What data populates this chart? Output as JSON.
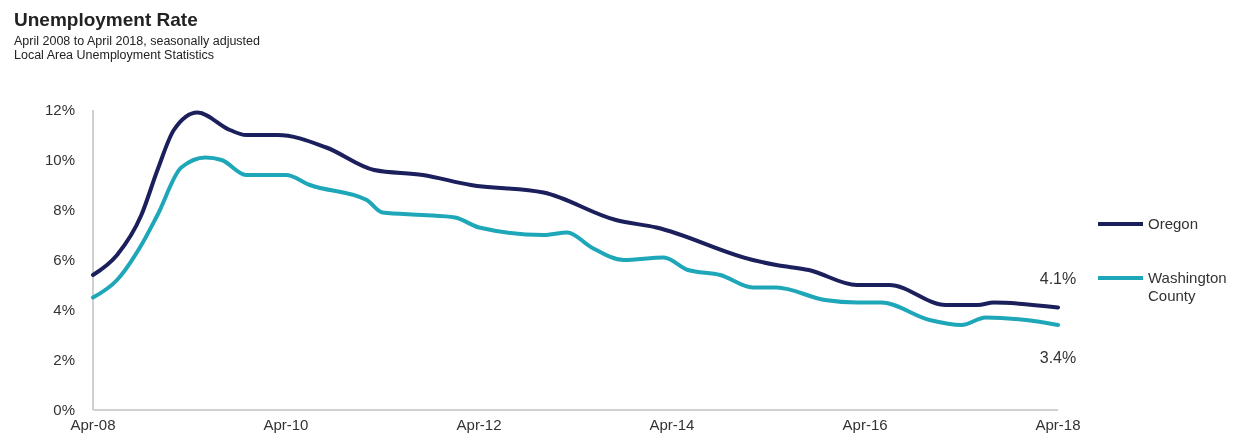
{
  "chart_data": {
    "type": "line",
    "title": "Unemployment Rate",
    "subtitle": "April 2008 to April 2018, seasonally adjusted\nLocal Area Unemployment Statistics",
    "xlim": [
      "2008-04",
      "2018-04"
    ],
    "xticks": [
      {
        "value": "2008-04",
        "label": "Apr-08"
      },
      {
        "value": "2010-04",
        "label": "Apr-10"
      },
      {
        "value": "2012-04",
        "label": "Apr-12"
      },
      {
        "value": "2014-04",
        "label": "Apr-14"
      },
      {
        "value": "2016-04",
        "label": "Apr-16"
      },
      {
        "value": "2018-04",
        "label": "Apr-18"
      }
    ],
    "ylim": [
      0,
      12
    ],
    "yticks": [
      {
        "value": 0,
        "label": "0%"
      },
      {
        "value": 2,
        "label": "2%"
      },
      {
        "value": 4,
        "label": "4%"
      },
      {
        "value": 6,
        "label": "6%"
      },
      {
        "value": 8,
        "label": "8%"
      },
      {
        "value": 10,
        "label": "10%"
      },
      {
        "value": 12,
        "label": "12%"
      }
    ],
    "grid": false,
    "legend": "right",
    "marker": "none",
    "line_style": "solid",
    "series": [
      {
        "name": "Oregon",
        "color": "#1b1f5c",
        "x": [
          "2008-04",
          "2008-07",
          "2008-10",
          "2008-12",
          "2009-02",
          "2009-05",
          "2009-09",
          "2009-11",
          "2010-03",
          "2010-09",
          "2011-03",
          "2011-09",
          "2012-03",
          "2012-12",
          "2013-09",
          "2014-02",
          "2015-02",
          "2015-05",
          "2015-09",
          "2016-03",
          "2016-07",
          "2017-02",
          "2017-06",
          "2017-08",
          "2018-04"
        ],
        "values": [
          5.4,
          6.2,
          7.8,
          9.6,
          11.2,
          11.9,
          11.2,
          11.0,
          11.0,
          10.5,
          9.6,
          9.4,
          9.0,
          8.7,
          7.6,
          7.3,
          6.0,
          5.8,
          5.6,
          5.0,
          5.0,
          4.2,
          4.2,
          4.3,
          4.1
        ]
      },
      {
        "name": "Washington County",
        "color": "#1ea6b9",
        "x": [
          "2008-04",
          "2008-07",
          "2008-10",
          "2008-12",
          "2009-03",
          "2009-06",
          "2009-08",
          "2009-11",
          "2010-04",
          "2010-07",
          "2011-02",
          "2011-04",
          "2011-09",
          "2012-01",
          "2012-04",
          "2012-12",
          "2013-03",
          "2013-06",
          "2013-10",
          "2014-03",
          "2014-06",
          "2014-10",
          "2015-02",
          "2015-05",
          "2015-11",
          "2016-03",
          "2016-06",
          "2016-12",
          "2017-04",
          "2017-07",
          "2017-12",
          "2018-04"
        ],
        "values": [
          4.5,
          5.2,
          6.6,
          7.8,
          9.7,
          10.1,
          10.0,
          9.4,
          9.4,
          9.0,
          8.4,
          7.9,
          7.8,
          7.7,
          7.3,
          7.0,
          7.1,
          6.5,
          6.0,
          6.1,
          5.6,
          5.4,
          4.9,
          4.9,
          4.4,
          4.3,
          4.3,
          3.6,
          3.4,
          3.7,
          3.6,
          3.4
        ]
      }
    ],
    "annotations": [
      {
        "text": "4.1%",
        "x": "2018-04",
        "y": 4.1
      },
      {
        "text": "3.4%",
        "x": "2018-04",
        "y": 3.4
      }
    ]
  }
}
